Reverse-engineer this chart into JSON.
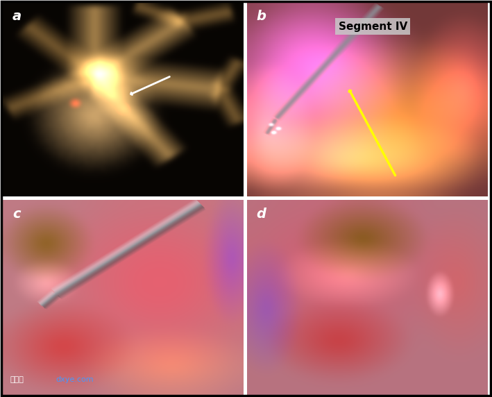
{
  "figure_width": 7.09,
  "figure_height": 5.72,
  "dpi": 100,
  "background_color": "#ffffff",
  "border_color": "#000000",
  "border_linewidth": 2,
  "panels": [
    "a",
    "b",
    "c",
    "d"
  ],
  "panel_label_color_a": "#ffffff",
  "panel_label_color_bcd": "#ffffff",
  "panel_label_fontsize": 14,
  "panel_label_fontweight": "bold",
  "segment_iv_text": "Segment IV",
  "segment_iv_color": "#000000",
  "segment_iv_fontsize": 11,
  "segment_iv_fontweight": "bold",
  "segment_iv_bg": "#c8c8c8",
  "arrow_color": "#ffff00",
  "watermark_chinese": "丁香叶",
  "watermark_latin": "dxye.com",
  "watermark_color_cn": "#ffffff",
  "watermark_color_lat": "#4499ff",
  "watermark_fontsize": 8
}
